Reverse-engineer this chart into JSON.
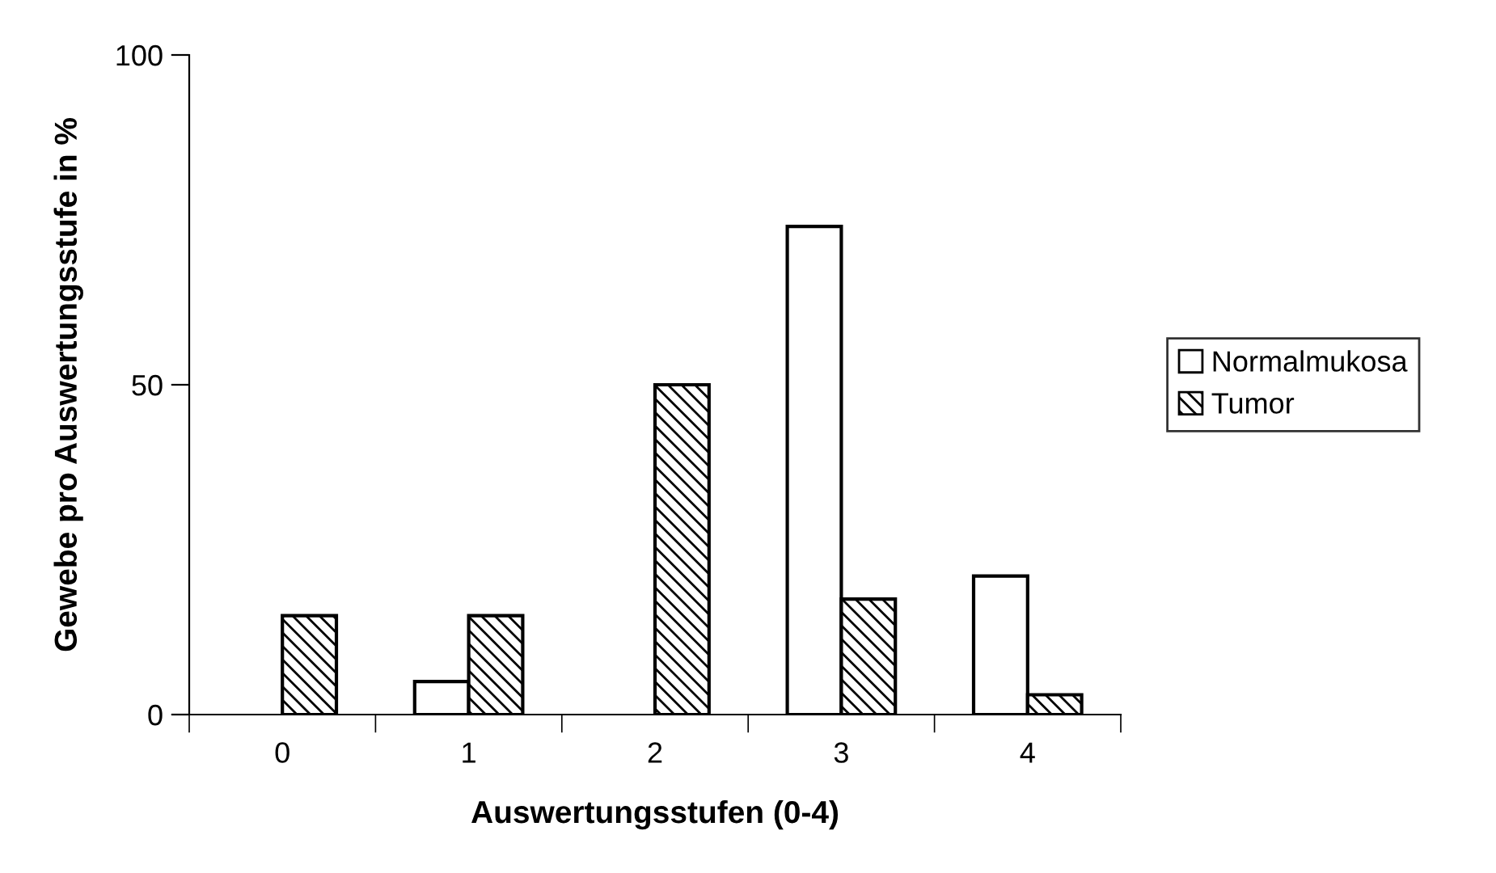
{
  "chart_data": {
    "type": "bar",
    "xlabel": "Auswertungsstufen (0-4)",
    "ylabel": "Gewebe pro Auswertungsstufe in %",
    "categories": [
      "0",
      "1",
      "2",
      "3",
      "4"
    ],
    "series": [
      {
        "name": "Normalmukosa",
        "color": "#ffffff",
        "values": [
          0,
          5,
          0,
          74,
          21
        ]
      },
      {
        "name": "Tumor",
        "color": "#000000",
        "values": [
          15,
          15,
          50,
          17.5,
          3
        ]
      }
    ],
    "ylim": [
      0,
      100
    ],
    "yticks": [
      0,
      50,
      100
    ],
    "grid": false,
    "legend": "right"
  }
}
